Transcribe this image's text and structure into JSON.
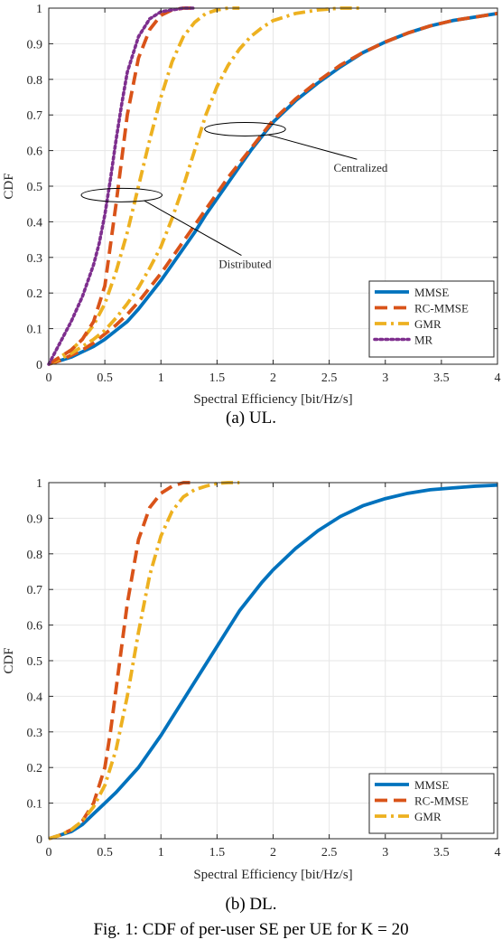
{
  "figures": [
    {
      "caption": "(a) UL."
    },
    {
      "caption": "(b) DL."
    }
  ],
  "footer_text": "Fig. 1: CDF of per-user SE per UE for K = 20",
  "colors": {
    "MMSE": "#0072bd",
    "RC-MMSE": "#d95319",
    "GMR": "#edb120",
    "MR": "#7e2f8e"
  },
  "chart_data": [
    {
      "type": "line",
      "xlabel": "Spectral Efficiency [bit/Hz/s]",
      "ylabel": "CDF",
      "xlim": [
        0,
        4
      ],
      "ylim": [
        0,
        1
      ],
      "xticks": [
        0,
        0.5,
        1,
        1.5,
        2,
        2.5,
        3,
        3.5,
        4
      ],
      "xtick_labels": [
        "0",
        "0.5",
        "1",
        "1.5",
        "2",
        "2.5",
        "3",
        "3.5",
        "4"
      ],
      "yticks": [
        0,
        0.1,
        0.2,
        0.3,
        0.4,
        0.5,
        0.6,
        0.7,
        0.8,
        0.9,
        1
      ],
      "ytick_labels": [
        "0",
        "0.1",
        "0.2",
        "0.3",
        "0.4",
        "0.5",
        "0.6",
        "0.7",
        "0.8",
        "0.9",
        "1"
      ],
      "grid": true,
      "legend_position": "bottom-right",
      "series": [
        {
          "name": "MMSE",
          "style": "solid",
          "color": "#0072bd",
          "x": [
            0,
            0.1,
            0.2,
            0.3,
            0.4,
            0.5,
            0.6,
            0.7,
            0.8,
            0.9,
            1.0,
            1.1,
            1.2,
            1.3,
            1.4,
            1.5,
            1.6,
            1.7,
            1.8,
            1.9,
            2.0,
            2.2,
            2.4,
            2.6,
            2.8,
            3.0,
            3.2,
            3.4,
            3.6,
            3.8,
            4.0
          ],
          "y": [
            0,
            0.01,
            0.02,
            0.035,
            0.05,
            0.07,
            0.095,
            0.12,
            0.155,
            0.195,
            0.235,
            0.28,
            0.325,
            0.37,
            0.42,
            0.465,
            0.51,
            0.555,
            0.6,
            0.64,
            0.68,
            0.74,
            0.79,
            0.835,
            0.875,
            0.905,
            0.93,
            0.95,
            0.965,
            0.975,
            0.985
          ]
        },
        {
          "name": "RC-MMSE",
          "style": "dashed",
          "color": "#d95319",
          "x": [
            0,
            0.1,
            0.2,
            0.3,
            0.4,
            0.5,
            0.6,
            0.7,
            0.8,
            0.9,
            1.0,
            1.1,
            1.2,
            1.3,
            1.4,
            1.5,
            1.6,
            1.7,
            1.8,
            1.9,
            2.0,
            2.2,
            2.4,
            2.6,
            2.8,
            3.0,
            3.2,
            3.4,
            3.6,
            3.8,
            4.0
          ],
          "y": [
            0,
            0.01,
            0.025,
            0.04,
            0.06,
            0.085,
            0.11,
            0.14,
            0.175,
            0.215,
            0.255,
            0.3,
            0.345,
            0.39,
            0.435,
            0.48,
            0.525,
            0.565,
            0.605,
            0.645,
            0.685,
            0.745,
            0.795,
            0.84,
            0.875,
            0.905,
            0.93,
            0.95,
            0.965,
            0.975,
            0.985
          ]
        },
        {
          "name": "GMR",
          "style": "dashdot",
          "color": "#edb120",
          "x": [
            0,
            0.1,
            0.2,
            0.3,
            0.4,
            0.5,
            0.6,
            0.7,
            0.8,
            0.9,
            1.0,
            1.1,
            1.2,
            1.3,
            1.4,
            1.5,
            1.6,
            1.7,
            1.8,
            1.9,
            2.0,
            2.2,
            2.4,
            2.6,
            2.8
          ],
          "y": [
            0,
            0.015,
            0.03,
            0.05,
            0.07,
            0.095,
            0.13,
            0.17,
            0.215,
            0.27,
            0.33,
            0.41,
            0.5,
            0.6,
            0.7,
            0.78,
            0.84,
            0.885,
            0.92,
            0.945,
            0.965,
            0.985,
            0.995,
            1.0,
            1.0
          ]
        },
        {
          "name": "GMR",
          "style": "dashdot",
          "color": "#edb120",
          "x": [
            0,
            0.1,
            0.2,
            0.3,
            0.4,
            0.5,
            0.6,
            0.7,
            0.8,
            0.9,
            1.0,
            1.1,
            1.2,
            1.3,
            1.4,
            1.5,
            1.6,
            1.7
          ],
          "y": [
            0,
            0.02,
            0.04,
            0.07,
            0.11,
            0.17,
            0.26,
            0.37,
            0.5,
            0.63,
            0.75,
            0.85,
            0.92,
            0.96,
            0.985,
            0.995,
            1.0,
            1.0
          ]
        },
        {
          "name": "RC-MMSE",
          "style": "dashed",
          "color": "#d95319",
          "x": [
            0,
            0.1,
            0.2,
            0.3,
            0.4,
            0.5,
            0.6,
            0.7,
            0.8,
            0.9,
            1.0,
            1.1,
            1.2,
            1.3
          ],
          "y": [
            0,
            0.02,
            0.04,
            0.07,
            0.12,
            0.22,
            0.45,
            0.7,
            0.86,
            0.94,
            0.98,
            0.995,
            1.0,
            1.0
          ]
        },
        {
          "name": "MR",
          "style": "dotted",
          "color": "#7e2f8e",
          "x": [
            0,
            0.1,
            0.2,
            0.3,
            0.4,
            0.45,
            0.5,
            0.55,
            0.6,
            0.65,
            0.7,
            0.8,
            0.9,
            1.0,
            1.1,
            1.2,
            1.3
          ],
          "y": [
            0,
            0.06,
            0.12,
            0.19,
            0.28,
            0.34,
            0.42,
            0.52,
            0.63,
            0.73,
            0.82,
            0.92,
            0.97,
            0.99,
            0.995,
            1.0,
            1.0
          ]
        }
      ],
      "annotations": [
        {
          "text": "Centralized",
          "ellipse_center": [
            1.75,
            0.66
          ],
          "ellipse_width": 0.72,
          "ellipse_height": 0.038,
          "text_anchor": [
            2.78,
            0.54
          ]
        },
        {
          "text": "Distributed",
          "ellipse_center": [
            0.65,
            0.475
          ],
          "ellipse_width": 0.72,
          "ellipse_height": 0.038,
          "text_anchor": [
            1.75,
            0.27
          ]
        }
      ],
      "legend": [
        "MMSE",
        "RC-MMSE",
        "GMR",
        "MR"
      ]
    },
    {
      "type": "line",
      "xlabel": "Spectral Efficiency [bit/Hz/s]",
      "ylabel": "CDF",
      "xlim": [
        0,
        4
      ],
      "ylim": [
        0,
        1
      ],
      "xticks": [
        0,
        0.5,
        1,
        1.5,
        2,
        2.5,
        3,
        3.5,
        4
      ],
      "xtick_labels": [
        "0",
        "0.5",
        "1",
        "1.5",
        "2",
        "2.5",
        "3",
        "3.5",
        "4"
      ],
      "yticks": [
        0,
        0.1,
        0.2,
        0.3,
        0.4,
        0.5,
        0.6,
        0.7,
        0.8,
        0.9,
        1
      ],
      "ytick_labels": [
        "0",
        "0.1",
        "0.2",
        "0.3",
        "0.4",
        "0.5",
        "0.6",
        "0.7",
        "0.8",
        "0.9",
        "1"
      ],
      "grid": true,
      "legend_position": "bottom-right",
      "series": [
        {
          "name": "MMSE",
          "style": "solid",
          "color": "#0072bd",
          "x": [
            0,
            0.1,
            0.2,
            0.3,
            0.4,
            0.5,
            0.6,
            0.7,
            0.8,
            0.9,
            1.0,
            1.1,
            1.2,
            1.3,
            1.4,
            1.5,
            1.6,
            1.7,
            1.8,
            1.9,
            2.0,
            2.2,
            2.4,
            2.6,
            2.8,
            3.0,
            3.2,
            3.4,
            3.6,
            3.8,
            4.0
          ],
          "y": [
            0,
            0.01,
            0.02,
            0.04,
            0.07,
            0.1,
            0.13,
            0.165,
            0.2,
            0.245,
            0.29,
            0.34,
            0.39,
            0.44,
            0.49,
            0.54,
            0.59,
            0.64,
            0.68,
            0.72,
            0.755,
            0.815,
            0.865,
            0.905,
            0.935,
            0.955,
            0.97,
            0.98,
            0.985,
            0.99,
            0.993
          ]
        },
        {
          "name": "RC-MMSE",
          "style": "dashed",
          "color": "#d95319",
          "x": [
            0,
            0.1,
            0.2,
            0.3,
            0.4,
            0.5,
            0.55,
            0.6,
            0.7,
            0.8,
            0.9,
            1.0,
            1.1,
            1.2,
            1.3
          ],
          "y": [
            0,
            0.01,
            0.025,
            0.05,
            0.1,
            0.2,
            0.3,
            0.42,
            0.66,
            0.84,
            0.93,
            0.97,
            0.99,
            1.0,
            1.0
          ]
        },
        {
          "name": "GMR",
          "style": "dashdot",
          "color": "#edb120",
          "x": [
            0,
            0.1,
            0.2,
            0.3,
            0.4,
            0.5,
            0.6,
            0.7,
            0.8,
            0.9,
            1.0,
            1.1,
            1.2,
            1.3,
            1.4,
            1.5,
            1.6,
            1.7
          ],
          "y": [
            0,
            0.01,
            0.025,
            0.05,
            0.09,
            0.15,
            0.25,
            0.4,
            0.58,
            0.74,
            0.85,
            0.92,
            0.96,
            0.98,
            0.99,
            0.998,
            1.0,
            1.0
          ]
        }
      ],
      "annotations": [],
      "legend": [
        "MMSE",
        "RC-MMSE",
        "GMR"
      ]
    }
  ]
}
